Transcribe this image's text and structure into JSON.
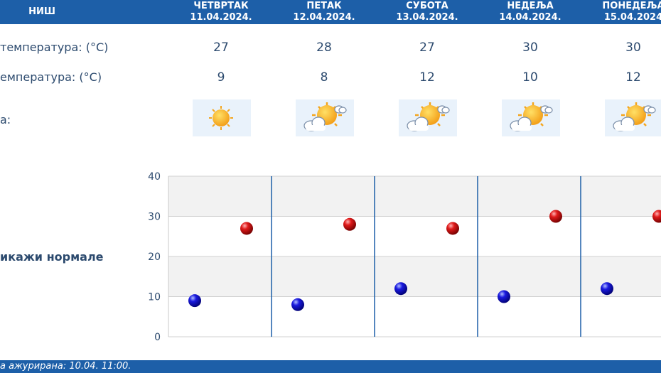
{
  "header": {
    "city": "НИШ",
    "days": [
      {
        "name": "ЧЕТВРТАК",
        "date": "11.04.2024."
      },
      {
        "name": "ПЕТАК",
        "date": "12.04.2024."
      },
      {
        "name": "СУБОТА",
        "date": "13.04.2024."
      },
      {
        "name": "НЕДЕЉА",
        "date": "14.04.2024."
      },
      {
        "name": "ПОНЕДЕЉА",
        "date": "15.04.2024"
      }
    ]
  },
  "rows": {
    "max_label": "температура: (°C)",
    "min_label": "емпература: (°C)",
    "icon_label": "а:"
  },
  "max_values": [
    "27",
    "28",
    "27",
    "30",
    "30"
  ],
  "min_values": [
    "9",
    "8",
    "12",
    "10",
    "12"
  ],
  "icons": [
    {
      "name": "sunny-icon"
    },
    {
      "name": "partly-cloudy-icon"
    },
    {
      "name": "partly-cloudy-icon"
    },
    {
      "name": "partly-cloudy-icon"
    },
    {
      "name": "partly-cloudy-icon"
    }
  ],
  "normals_link": "икажи нормале",
  "footer": {
    "text": "а ажурирана:  10.04. 11:00."
  },
  "colors": {
    "header": "#1d5fa8",
    "max_point": "#c00000",
    "min_point": "#0a0aa8",
    "separator": "#1d5fa8"
  },
  "chart_data": {
    "type": "scatter",
    "categories": [
      "11.04.2024.",
      "12.04.2024.",
      "13.04.2024.",
      "14.04.2024.",
      "15.04.2024"
    ],
    "series": [
      {
        "values": [
          9,
          8,
          12,
          10,
          12
        ],
        "color": "#0a0aa8"
      },
      {
        "values": [
          27,
          28,
          27,
          30,
          30
        ],
        "color": "#c00000"
      }
    ],
    "ylim": [
      0,
      40
    ],
    "yticks": [
      "0",
      "10",
      "20",
      "30",
      "40"
    ],
    "grid": true
  }
}
